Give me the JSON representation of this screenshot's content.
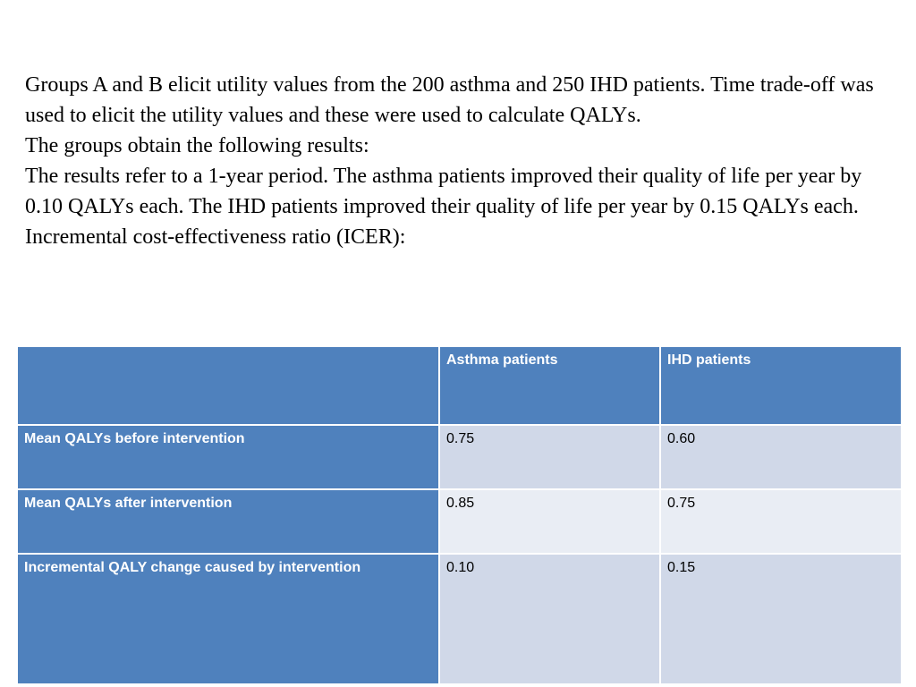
{
  "intro": {
    "line1": "Groups A and B elicit utility values from the 200 asthma and 250 IHD patients. Time trade-off was used to elicit the utility values and these were used to calculate QALYs.",
    "line2": "The groups obtain the following results:",
    "line3": "The results refer to a 1-year period. The asthma patients improved their quality of life per year by 0.10 QALYs each. The IHD patients improved their quality of life per year by 0.15 QALYs each.",
    "line4": "Incremental cost-effectiveness ratio (ICER):"
  },
  "table": {
    "headers": [
      "",
      "Asthma patients",
      "IHD patients"
    ],
    "rows": [
      {
        "label": "Mean QALYs before intervention",
        "asthma": "0.75",
        "ihd": "0.60"
      },
      {
        "label": "Mean QALYs after intervention",
        "asthma": "0.85",
        "ihd": "0.75"
      },
      {
        "label": "Incremental QALY change caused by intervention",
        "asthma": "0.10",
        "ihd": "0.15"
      }
    ]
  },
  "colors": {
    "header_blue": "#4f81bd",
    "cell_dark": "#d0d8e8",
    "cell_light": "#e9edf4"
  }
}
